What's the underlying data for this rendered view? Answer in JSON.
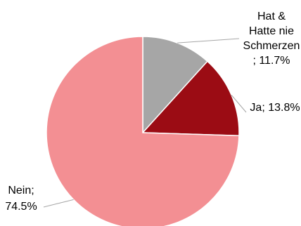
{
  "chart_data": {
    "type": "pie",
    "slices": [
      {
        "label_lines": [
          "Hat &",
          "Hatte nie",
          "Schmerzen",
          "; 11.7%"
        ],
        "category": "Hat & Hatte nie Schmerzen",
        "value": 11.7,
        "color": "#a6a6a6"
      },
      {
        "label_lines": [
          "Ja; 13.8%"
        ],
        "category": "Ja",
        "value": 13.8,
        "color": "#9b0c14"
      },
      {
        "label_lines": [
          "Nein;",
          "74.5%"
        ],
        "category": "Nein",
        "value": 74.5,
        "color": "#f38f93"
      }
    ],
    "legend": "none",
    "start_angle": "12 o'clock",
    "direction": "clockwise"
  }
}
